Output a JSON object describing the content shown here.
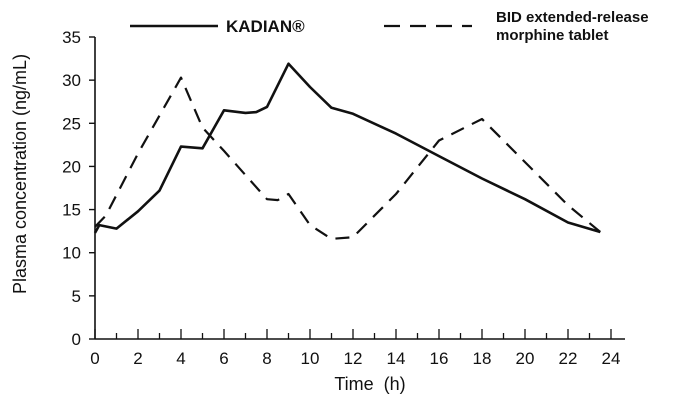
{
  "chart_data": {
    "type": "line",
    "title": "",
    "xlabel": "Time  (h)",
    "ylabel": "Plasma concentration (ng/mL)",
    "xlim": [
      0,
      24
    ],
    "ylim": [
      0,
      35
    ],
    "x_ticks": [
      0,
      2,
      4,
      6,
      8,
      10,
      12,
      14,
      16,
      18,
      20,
      22,
      24
    ],
    "y_ticks": [
      0,
      5,
      10,
      15,
      20,
      25,
      30,
      35
    ],
    "grid": false,
    "legend_position": "top",
    "series": [
      {
        "name": "KADIAN®",
        "style": "solid",
        "color": "#111111",
        "x": [
          0,
          0.2,
          1,
          2,
          3,
          4,
          5,
          6,
          7,
          7.5,
          8,
          9,
          10,
          11,
          12,
          14,
          16,
          18,
          20,
          22,
          23.5
        ],
        "y": [
          12.3,
          13.2,
          12.8,
          14.8,
          17.2,
          22.3,
          22.1,
          26.5,
          26.2,
          26.3,
          26.9,
          31.9,
          29.2,
          26.8,
          26.1,
          23.8,
          21.2,
          18.6,
          16.2,
          13.5,
          12.4
        ]
      },
      {
        "name": "BID extended-release morphine tablet",
        "style": "dashed",
        "color": "#111111",
        "x": [
          0,
          0.5,
          2,
          4,
          5,
          6,
          7,
          8,
          8.5,
          9,
          10,
          11,
          12,
          14,
          16,
          18,
          20,
          22,
          23.5
        ],
        "y": [
          13.0,
          14.3,
          21.5,
          30.3,
          24.5,
          21.8,
          19.0,
          16.2,
          16.1,
          16.8,
          13.2,
          11.6,
          11.8,
          16.8,
          23.0,
          25.5,
          20.5,
          15.5,
          12.4
        ]
      }
    ]
  }
}
